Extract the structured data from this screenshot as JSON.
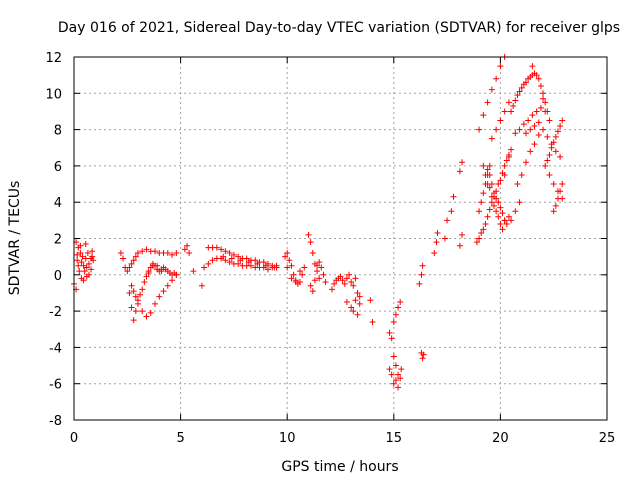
{
  "chart_data": {
    "type": "scatter",
    "title": "Day 016 of 2021, Sidereal Day-to-day VTEC variation (SDTVAR) for receiver glps",
    "xlabel": "GPS time / hours",
    "ylabel": "SDTVAR / TECUs",
    "xlim": [
      0,
      25
    ],
    "ylim": [
      -8,
      12
    ],
    "xticks": [
      0,
      5,
      10,
      15,
      20,
      25
    ],
    "yticks": [
      -8,
      -6,
      -4,
      -2,
      0,
      2,
      4,
      6,
      8,
      10,
      12
    ],
    "grid": true,
    "marker": "+",
    "color": "#ff0000",
    "series": [
      {
        "name": "SDTVAR",
        "x": [
          0.0,
          0.1,
          0.15,
          0.2,
          0.25,
          0.3,
          0.35,
          0.4,
          0.45,
          0.5,
          0.55,
          0.6,
          0.65,
          0.7,
          0.8,
          0.85,
          0.9,
          0.1,
          0.2,
          0.3,
          0.45,
          0.55,
          0.7,
          0.85,
          0.15,
          0.35,
          0.6,
          0.8,
          2.2,
          2.3,
          2.4,
          2.5,
          2.6,
          2.7,
          2.8,
          2.9,
          3.0,
          3.2,
          3.4,
          3.6,
          3.8,
          4.0,
          4.2,
          4.4,
          4.6,
          4.8,
          2.6,
          2.7,
          2.8,
          2.9,
          3.0,
          3.1,
          3.2,
          3.3,
          3.4,
          3.5,
          3.6,
          3.7,
          3.8,
          3.9,
          4.0,
          4.1,
          4.2,
          4.3,
          4.4,
          4.5,
          4.6,
          4.7,
          4.8,
          2.7,
          2.8,
          2.9,
          3.0,
          3.2,
          3.4,
          3.6,
          3.8,
          4.0,
          4.2,
          4.4,
          4.6,
          4.8,
          3.5,
          3.7,
          3.9,
          4.1,
          5.2,
          5.3,
          5.4,
          5.6,
          6.0,
          6.1,
          6.3,
          6.5,
          6.7,
          6.9,
          7.1,
          7.3,
          7.5,
          7.7,
          7.9,
          8.1,
          8.3,
          8.5,
          8.7,
          8.9,
          9.1,
          9.3,
          9.5,
          6.3,
          6.5,
          6.7,
          6.9,
          7.1,
          7.3,
          7.5,
          7.7,
          7.9,
          8.1,
          8.3,
          8.5,
          8.7,
          8.9,
          9.1,
          9.3,
          9.5,
          7.0,
          7.4,
          7.8,
          8.2,
          8.6,
          9.0,
          9.4,
          9.9,
          10.0,
          10.1,
          10.2,
          10.3,
          10.4,
          10.5,
          10.6,
          10.7,
          10.8,
          10.0,
          10.2,
          10.4,
          10.6,
          11.0,
          11.1,
          11.2,
          11.3,
          11.4,
          11.5,
          11.6,
          11.7,
          11.8,
          11.1,
          11.2,
          11.3,
          11.4,
          11.5,
          12.1,
          12.2,
          12.3,
          12.4,
          12.5,
          12.6,
          12.7,
          12.8,
          12.9,
          13.0,
          13.1,
          13.2,
          13.3,
          13.4,
          12.8,
          13.0,
          13.2,
          13.4,
          13.1,
          13.3,
          13.9,
          14.0,
          14.8,
          14.9,
          15.0,
          15.1,
          14.8,
          14.9,
          15.0,
          15.1,
          15.2,
          15.0,
          15.1,
          15.2,
          15.3,
          15.2,
          15.3,
          15.35,
          16.2,
          16.3,
          16.35,
          16.3,
          16.35,
          16.4,
          16.9,
          17.0,
          17.05,
          17.4,
          17.5,
          17.7,
          17.8,
          18.1,
          18.2,
          18.1,
          18.2,
          18.9,
          19.0,
          19.1,
          19.2,
          19.3,
          19.4,
          19.5,
          19.6,
          19.7,
          19.8,
          19.9,
          20.0,
          20.1,
          20.2,
          20.3,
          20.4,
          20.5,
          19.0,
          19.1,
          19.2,
          19.3,
          19.4,
          19.5,
          19.4,
          19.5,
          19.6,
          19.7,
          19.8,
          19.9,
          20.0,
          20.1,
          20.2,
          20.3,
          20.4,
          19.0,
          19.2,
          19.4,
          19.6,
          19.8,
          20.0,
          20.2,
          19.2,
          19.3,
          19.4,
          19.5,
          19.6,
          19.7,
          19.8,
          19.9,
          20.0,
          20.1,
          20.2,
          19.6,
          19.8,
          20.0,
          20.2,
          20.4,
          20.5,
          20.6,
          20.7,
          20.8,
          20.9,
          21.0,
          21.1,
          21.2,
          21.3,
          21.4,
          21.5,
          21.6,
          21.7,
          21.8,
          21.9,
          22.0,
          22.1,
          22.2,
          22.3,
          20.7,
          20.9,
          21.1,
          21.3,
          21.5,
          21.7,
          21.9,
          22.1,
          21.2,
          21.4,
          21.6,
          21.8,
          22.0,
          22.2,
          22.4,
          22.6,
          22.8,
          22.1,
          22.2,
          22.3,
          22.4,
          22.5,
          22.6,
          22.7,
          22.8,
          22.9,
          22.3,
          22.5,
          22.7,
          22.9,
          22.5,
          22.6,
          22.7,
          22.8,
          22.9,
          20.8,
          21.0,
          21.2,
          21.4,
          21.6,
          21.8,
          20.5,
          20.7,
          20.9,
          20.2,
          20.4,
          21.5,
          22.0
        ],
        "y": [
          -0.5,
          1.8,
          0.8,
          1.5,
          0.2,
          1.2,
          -0.2,
          1.0,
          0.5,
          0.2,
          0.9,
          0.4,
          1.2,
          0.6,
          0.3,
          1.3,
          0.8,
          -0.8,
          0.5,
          1.6,
          -0.3,
          1.7,
          0.0,
          1.0,
          1.1,
          0.7,
          -0.1,
          0.9,
          1.2,
          0.9,
          0.4,
          0.2,
          0.4,
          0.6,
          0.8,
          1.0,
          1.2,
          1.3,
          1.4,
          1.3,
          1.3,
          1.2,
          1.2,
          1.2,
          1.1,
          1.2,
          -1.0,
          -1.8,
          -2.5,
          -2.0,
          -1.4,
          -1.1,
          -0.8,
          -0.4,
          -0.1,
          0.2,
          0.4,
          0.6,
          0.5,
          0.3,
          0.2,
          0.3,
          0.4,
          0.3,
          0.2,
          0.1,
          0.0,
          0.1,
          0.0,
          -0.6,
          -0.9,
          -1.2,
          -1.6,
          -2.0,
          -2.3,
          -2.1,
          -1.6,
          -1.2,
          -0.9,
          -0.6,
          -0.3,
          0.0,
          0.1,
          0.5,
          0.5,
          0.2,
          1.4,
          1.6,
          1.2,
          0.2,
          -0.6,
          0.4,
          0.6,
          0.8,
          0.9,
          0.9,
          0.8,
          0.7,
          0.6,
          0.6,
          0.5,
          0.5,
          0.5,
          0.4,
          0.4,
          0.4,
          0.3,
          0.4,
          0.4,
          1.5,
          1.5,
          1.5,
          1.4,
          1.3,
          1.2,
          1.1,
          1.0,
          0.9,
          0.9,
          0.8,
          0.8,
          0.7,
          0.7,
          0.6,
          0.5,
          0.5,
          1.0,
          0.9,
          0.8,
          0.7,
          0.6,
          0.5,
          0.4,
          1.0,
          1.2,
          0.8,
          0.5,
          0.0,
          -0.3,
          -0.5,
          -0.4,
          0.0,
          0.4,
          0.4,
          -0.2,
          -0.4,
          0.2,
          2.2,
          1.8,
          1.2,
          0.6,
          0.2,
          -0.2,
          0.4,
          0.0,
          -0.4,
          -0.6,
          -0.9,
          -0.3,
          0.5,
          0.7,
          -0.8,
          -0.5,
          -0.3,
          -0.2,
          -0.1,
          -0.3,
          -0.5,
          -0.2,
          0.0,
          -0.4,
          -0.6,
          -0.2,
          -1.0,
          -1.2,
          -1.5,
          -1.8,
          -1.4,
          -1.6,
          -2.0,
          -2.2,
          -1.4,
          -2.6,
          -3.2,
          -3.5,
          -4.5,
          -5.0,
          -5.2,
          -5.5,
          -6.0,
          -5.8,
          -5.5,
          -2.6,
          -2.2,
          -1.8,
          -1.5,
          -6.2,
          -5.7,
          -5.2,
          -0.5,
          0.0,
          0.5,
          -4.3,
          -4.6,
          -4.4,
          1.2,
          1.8,
          2.3,
          2.0,
          3.0,
          3.5,
          4.3,
          1.6,
          2.2,
          5.7,
          6.2,
          1.8,
          2.0,
          2.3,
          2.5,
          2.8,
          3.2,
          3.6,
          4.0,
          4.3,
          4.6,
          5.0,
          5.2,
          5.6,
          6.0,
          6.3,
          6.6,
          6.9,
          3.5,
          4.0,
          4.5,
          5.0,
          5.5,
          6.0,
          5.8,
          5.5,
          5.0,
          4.5,
          4.2,
          4.0,
          3.7,
          3.4,
          3.0,
          2.8,
          3.2,
          8.0,
          8.8,
          9.5,
          10.2,
          10.8,
          11.5,
          12.0,
          6.0,
          5.5,
          5.0,
          4.8,
          4.3,
          3.8,
          3.5,
          3.2,
          2.8,
          2.5,
          3.0,
          7.5,
          8.0,
          8.5,
          9.0,
          9.5,
          9.0,
          9.3,
          9.6,
          9.9,
          10.1,
          10.3,
          10.5,
          10.6,
          10.8,
          10.9,
          11.0,
          11.1,
          11.0,
          10.8,
          10.4,
          10.0,
          9.5,
          9.0,
          8.5,
          7.8,
          8.0,
          8.3,
          8.5,
          8.8,
          9.0,
          9.2,
          9.0,
          7.8,
          8.0,
          8.2,
          8.4,
          8.0,
          7.6,
          7.2,
          6.8,
          6.5,
          6.0,
          6.3,
          6.6,
          7.0,
          7.3,
          7.6,
          7.9,
          8.2,
          8.5,
          5.5,
          5.0,
          4.6,
          4.2,
          3.5,
          3.8,
          4.2,
          4.6,
          5.0,
          5.0,
          5.5,
          6.2,
          6.8,
          7.2,
          7.7,
          3.0,
          3.5,
          4.0,
          5.5,
          6.5,
          11.5,
          9.7
        ]
      }
    ]
  }
}
